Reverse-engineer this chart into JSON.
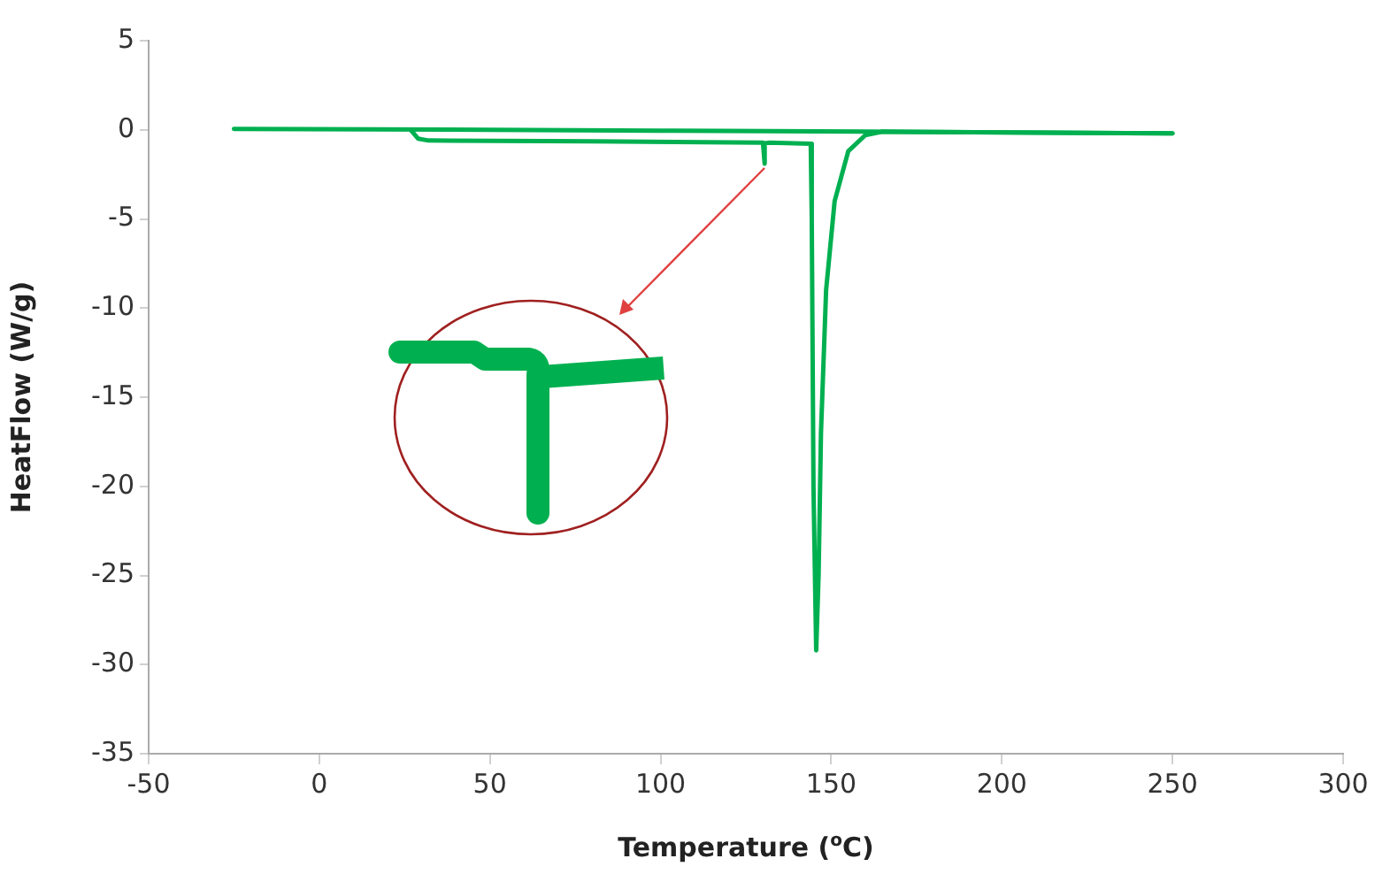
{
  "chart_data": {
    "type": "line",
    "xlabel": "Temperature ($^{o}$C)",
    "ylabel": "HeatFlow (W/g)",
    "xlim": [
      -50,
      300
    ],
    "xticks": [
      -50,
      0,
      50,
      100,
      150,
      200,
      250,
      300
    ],
    "ylim": [
      -35,
      5
    ],
    "yticks": [
      -35,
      -30,
      -25,
      -20,
      -15,
      -10,
      -5,
      0,
      5
    ],
    "grid": false,
    "legend": false,
    "marker": "none",
    "line_style": "solid",
    "series": [
      {
        "color": "#00b050",
        "x": [
          -25,
          50,
          100,
          160,
          250
        ],
        "values": [
          0.05,
          0,
          -0.05,
          -0.1,
          -0.2
        ]
      },
      {
        "color": "#00b050",
        "x": [
          27,
          29,
          32,
          80,
          130,
          130.5,
          130.5,
          132,
          144,
          144.3,
          144.8,
          145.6,
          146.3,
          147,
          148.5,
          151,
          155,
          160,
          165,
          250
        ],
        "values": [
          -0.05,
          -0.5,
          -0.6,
          -0.65,
          -0.72,
          -1.9,
          -0.75,
          -0.72,
          -0.78,
          -5,
          -20,
          -29.2,
          -25,
          -17,
          -9,
          -4,
          -1.2,
          -0.3,
          -0.1,
          -0.2
        ]
      }
    ]
  }
}
